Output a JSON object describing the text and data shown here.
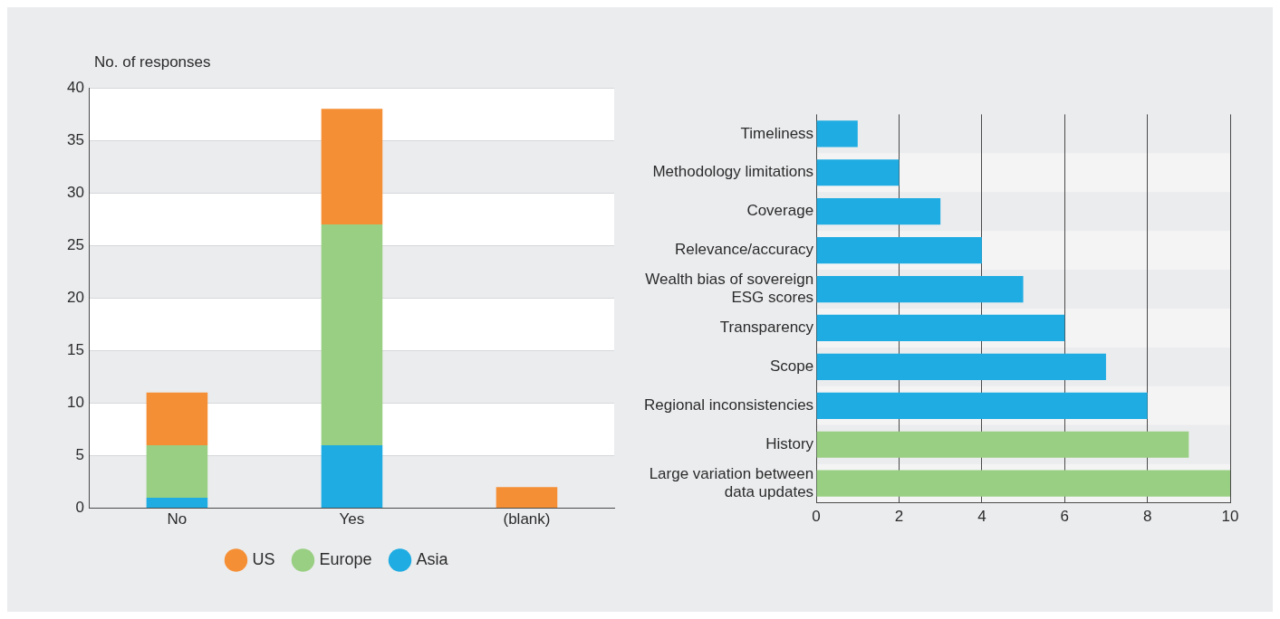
{
  "chart_data": [
    {
      "type": "bar",
      "ylabel": "No. of responses",
      "categories": [
        "No",
        "Yes",
        "(blank)"
      ],
      "stacked": true,
      "series": [
        {
          "name": "Asia",
          "color": "#1eace2",
          "values": [
            1,
            6,
            0
          ]
        },
        {
          "name": "Europe",
          "color": "#99cf82",
          "values": [
            5,
            21,
            0
          ]
        },
        {
          "name": "US",
          "color": "#f58f35",
          "values": [
            5,
            11,
            2
          ]
        }
      ],
      "ylim": [
        0,
        40
      ],
      "yticks": [
        0,
        5,
        10,
        15,
        20,
        25,
        30,
        35,
        40
      ],
      "grid": "y",
      "legend": "bottom"
    },
    {
      "type": "bar",
      "orientation": "horizontal",
      "categories": [
        "Timeliness",
        "Methodology limitations",
        "Coverage",
        "Relevance/accuracy",
        "Wealth bias of sovereign ESG scores",
        "Transparency",
        "Scope",
        "Regional inconsistencies",
        "History",
        "Large variation between data updates"
      ],
      "values": [
        1,
        2,
        3,
        4,
        5,
        6,
        7,
        8,
        9,
        10
      ],
      "colors": [
        "#1eace2",
        "#1eace2",
        "#1eace2",
        "#1eace2",
        "#1eace2",
        "#1eace2",
        "#1eace2",
        "#1eace2",
        "#99cf82",
        "#99cf82"
      ],
      "xlim": [
        0,
        10
      ],
      "xticks": [
        0,
        2,
        4,
        6,
        8,
        10
      ],
      "grid": "x"
    }
  ]
}
